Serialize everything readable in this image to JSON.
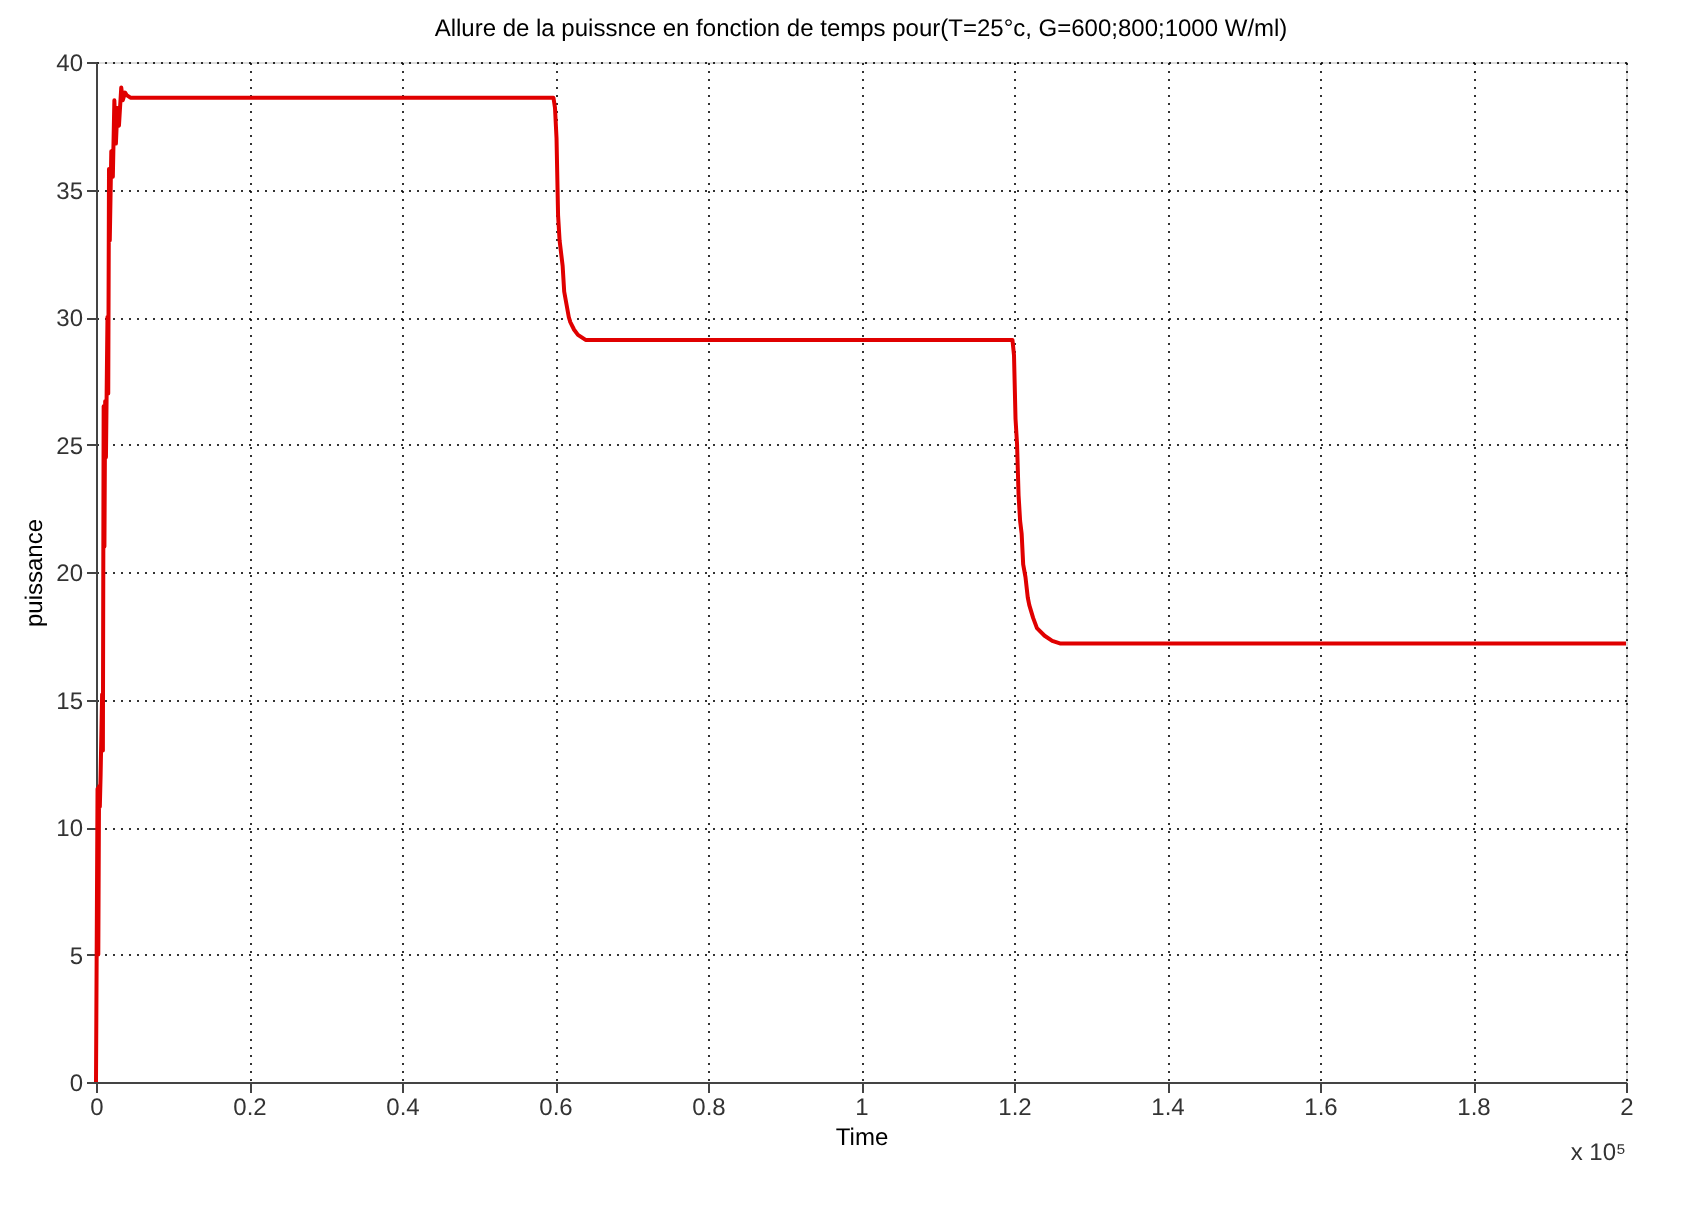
{
  "chart_data": {
    "type": "line",
    "title": "Allure de la puissnce en fonction de temps pour(T=25°c, G=600;800;1000 W/ml)",
    "xlabel": "Time",
    "ylabel": "puissance",
    "annotations": [
      "x 10⁵"
    ],
    "series": [
      {
        "color": "#e00000",
        "x": [
          0,
          0.002,
          0.003,
          0.004,
          0.005,
          0.006,
          0.008,
          0.009,
          0.01,
          0.011,
          0.012,
          0.013,
          0.015,
          0.016,
          0.017,
          0.018,
          0.02,
          0.022,
          0.024,
          0.026,
          0.028,
          0.03,
          0.033,
          0.035,
          0.038,
          0.04,
          0.045,
          0.05,
          0.1,
          0.2,
          0.3,
          0.4,
          0.5,
          0.598,
          0.6,
          0.602,
          0.604,
          0.606,
          0.608,
          0.61,
          0.612,
          0.615,
          0.618,
          0.62,
          0.625,
          0.63,
          0.64,
          0.65,
          0.7,
          0.8,
          0.9,
          1.0,
          1.1,
          1.198,
          1.2,
          1.202,
          1.204,
          1.206,
          1.208,
          1.21,
          1.212,
          1.215,
          1.218,
          1.22,
          1.225,
          1.23,
          1.24,
          1.25,
          1.26,
          1.27,
          1.3,
          1.4,
          1.5,
          1.6,
          1.7,
          1.8,
          1.9,
          2.0
        ],
        "values": [
          0,
          11.5,
          5,
          11.6,
          10.8,
          12,
          15.2,
          13,
          26.5,
          21,
          26.7,
          24.5,
          30,
          27,
          35.8,
          33,
          36.5,
          35.5,
          38.5,
          36.8,
          38.2,
          37.5,
          39,
          38.5,
          38.8,
          38.7,
          38.6,
          38.6,
          38.6,
          38.6,
          38.6,
          38.6,
          38.6,
          38.6,
          38.2,
          37,
          34,
          33,
          32.5,
          32,
          31,
          30.5,
          30,
          29.8,
          29.5,
          29.3,
          29.1,
          29.1,
          29.1,
          29.1,
          29.1,
          29.1,
          29.1,
          29.1,
          28.5,
          26,
          25,
          23,
          22,
          21.5,
          20.3,
          19.8,
          19,
          18.7,
          18.2,
          17.8,
          17.5,
          17.3,
          17.2,
          17.2,
          17.2,
          17.2,
          17.2,
          17.2,
          17.2,
          17.2,
          17.2,
          17.2
        ]
      }
    ],
    "xlim": [
      0,
      2
    ],
    "xticks": [
      0,
      0.2,
      0.4,
      0.6,
      0.8,
      1,
      1.2,
      1.4,
      1.6,
      1.8,
      2
    ],
    "ylim": [
      0,
      40
    ],
    "yticks": [
      0,
      5,
      10,
      15,
      20,
      25,
      30,
      35,
      40
    ],
    "grid": true,
    "line_style": "solid",
    "marker": "none"
  }
}
